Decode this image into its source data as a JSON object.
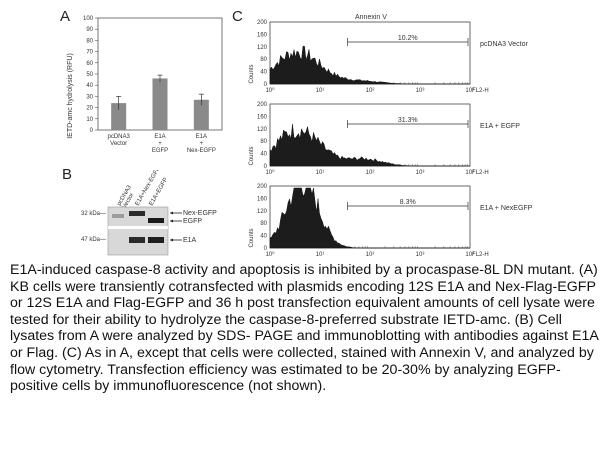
{
  "panels": {
    "a": "A",
    "b": "B",
    "c": "C"
  },
  "panel_a": {
    "chart_data": {
      "type": "bar",
      "categories": [
        "pcDNA3 Vector",
        "E1A + EGFP",
        "E1A + Nex-EGFP"
      ],
      "category_lines": [
        [
          "pcDNA3",
          "Vector"
        ],
        [
          "E1A",
          "+",
          "EGFP"
        ],
        [
          "E1A",
          "+",
          "Nex-EGFP"
        ]
      ],
      "values": [
        24,
        46,
        27
      ],
      "errors": [
        6,
        3,
        5
      ],
      "ylabel": "IETD-amc hydrolysis (RFU)",
      "ylim": [
        0,
        100
      ],
      "yticks": [
        "0",
        "10",
        "20",
        "30",
        "40",
        "50",
        "60",
        "70",
        "80",
        "90",
        "100"
      ]
    }
  },
  "panel_b": {
    "lanes": [
      "pcDNA3 Vector",
      "E1A+Nex-EGFP",
      "E1A+EGFP"
    ],
    "lane_lines": [
      [
        "pcDNA3",
        "Vector"
      ],
      [
        "E1A+Nex-EGFP"
      ],
      [
        "E1A+EGFP"
      ]
    ],
    "markers": [
      "32 kDa—",
      "47 kDa—"
    ],
    "bands": [
      "Nex-EGFP",
      "EGFP",
      "E1A"
    ]
  },
  "panel_c": {
    "title": "Annexin V",
    "y_axis_label": "Counts",
    "y_ticks": [
      "0",
      "40",
      "80",
      "120",
      "160",
      "200"
    ],
    "x_ticks": [
      "10⁰",
      "10¹",
      "10²",
      "10³",
      "10⁴"
    ],
    "x_label": "FL2-H",
    "histograms": [
      {
        "label": "pcDNA3 Vector",
        "percent": "10.2%",
        "peak_height": 32
      },
      {
        "label": "E1A + EGFP",
        "percent": "31.3%",
        "peak_height": 36
      },
      {
        "label": "E1A + NexEGFP",
        "percent": "8.3%",
        "peak_height": 66
      }
    ]
  },
  "caption": "E1A-induced caspase-8 activity and apoptosis is inhibited by a procaspase-8L DN mutant. (A) KB cells were transiently cotransfected with plasmids encoding 12S E1A and Nex-Flag-EGFP or 12S E1A and Flag-EGFP and 36 h post transfection equivalent amounts of cell lysate were tested for their ability to hydrolyze the caspase-8-preferred substrate IETD-amc. (B) Cell lysates from A were analyzed by SDS- PAGE and immunoblotting with antibodies against E1A or Flag. (C) As in A, except that cells were collected, stained with Annexin V, and analyzed by flow cytometry. Transfection efficiency was estimated to be 20-30% by analyzing EGFP-positive cells by immunofluorescence (not shown)."
}
